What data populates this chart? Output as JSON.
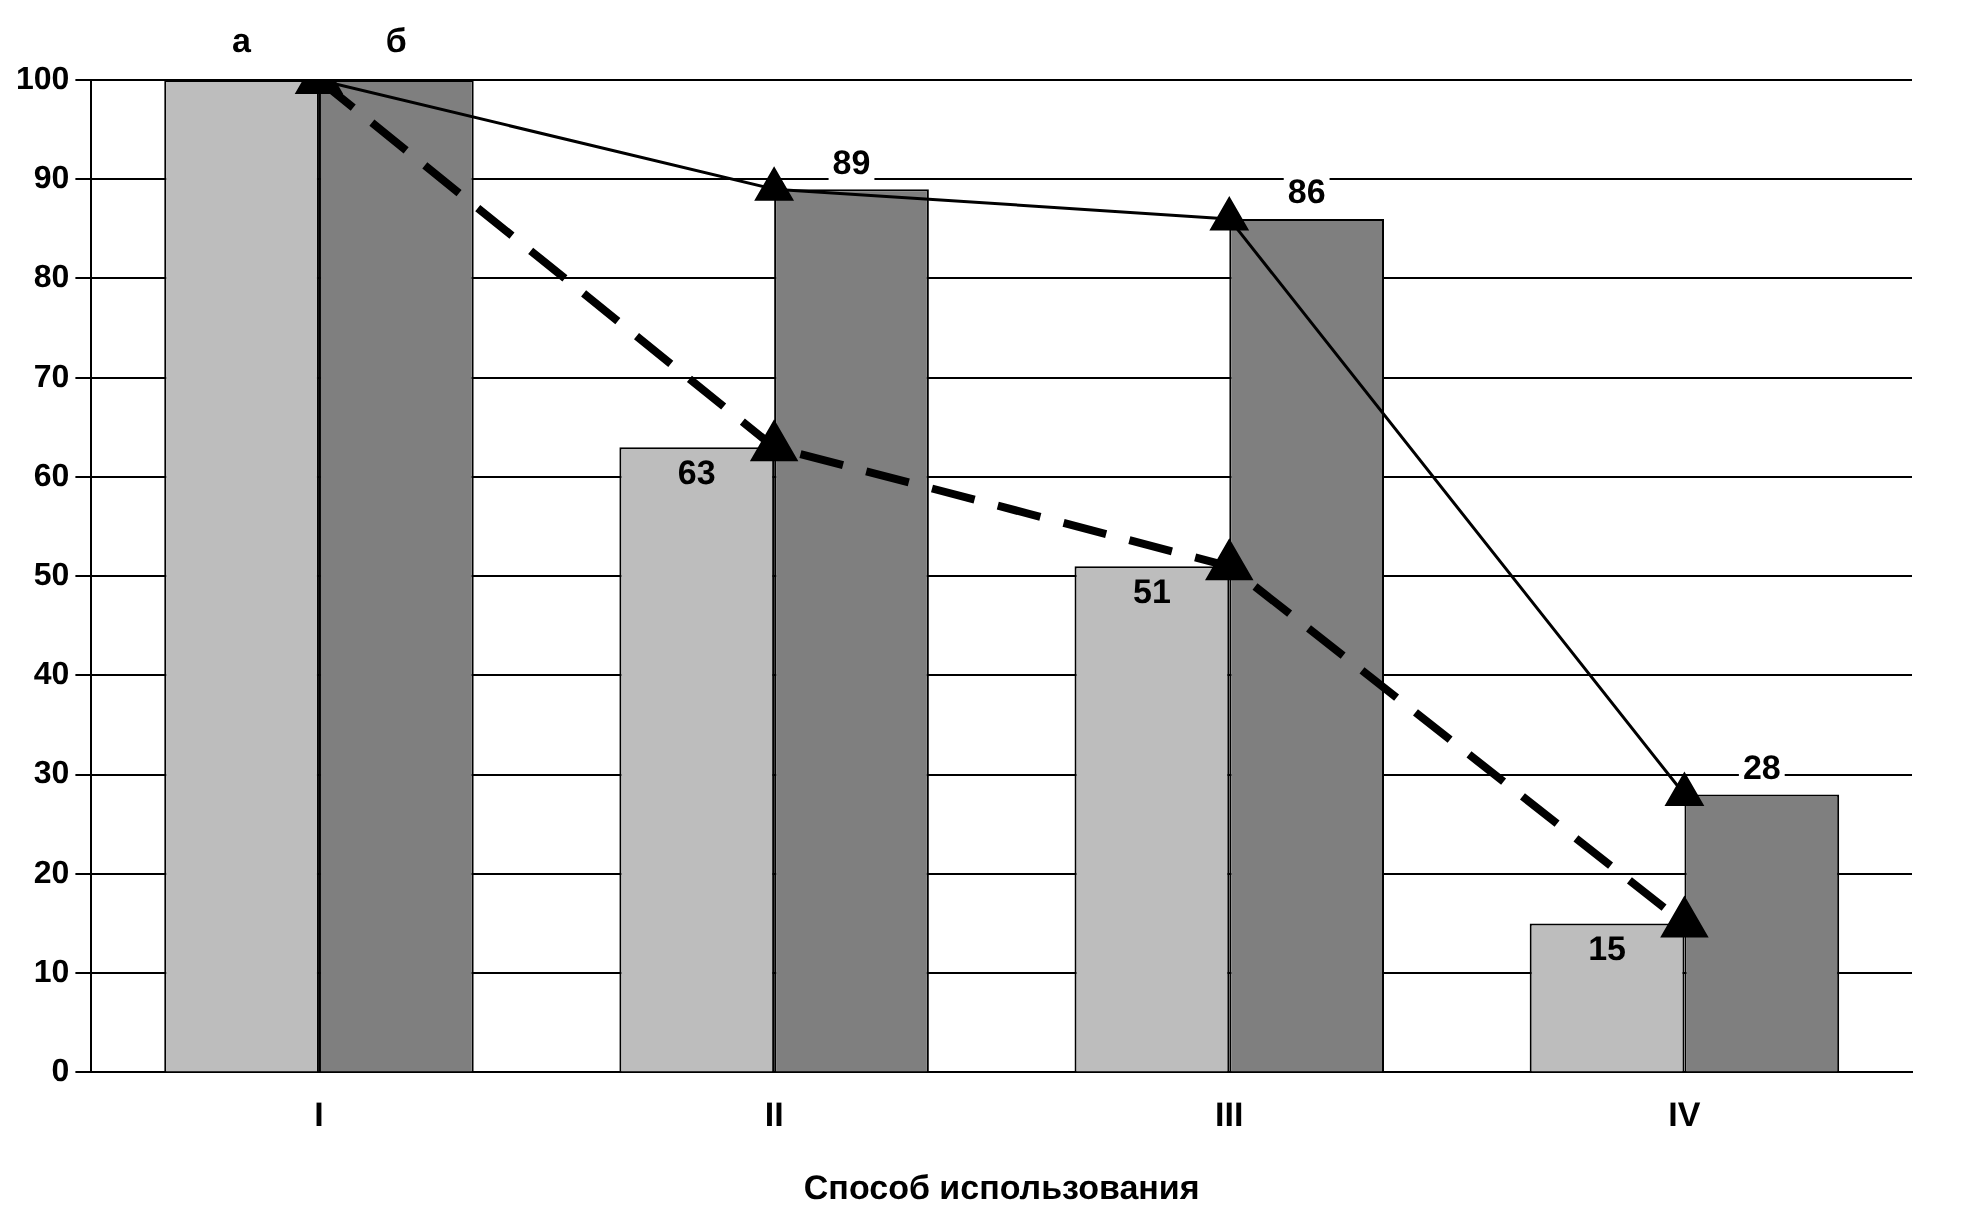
{
  "chart_data": {
    "type": "bar",
    "xlabel": "Способ использования",
    "categories": [
      "I",
      "II",
      "III",
      "IV"
    ],
    "series": [
      {
        "name": "а",
        "color": "#bdbdbd",
        "values": [
          100,
          63,
          51,
          15
        ],
        "value_labels": [
          null,
          "63",
          "51",
          "15"
        ]
      },
      {
        "name": "б",
        "color": "#7f7f7f",
        "values": [
          100,
          89,
          86,
          28
        ],
        "value_labels": [
          null,
          "89",
          "86",
          "28"
        ]
      },
      {
        "type": "line",
        "color": "#000000",
        "values": [
          100,
          63,
          51,
          15
        ],
        "line_style": "dashed"
      },
      {
        "type": "line",
        "color": "#000000",
        "values": [
          100,
          89,
          86,
          28
        ],
        "line_style": "solid"
      }
    ],
    "ylim": [
      0,
      100
    ],
    "yticks": [
      0,
      10,
      20,
      30,
      40,
      50,
      60,
      70,
      80,
      90,
      100
    ],
    "grid": "y",
    "legend": false,
    "marker": "triangle"
  }
}
